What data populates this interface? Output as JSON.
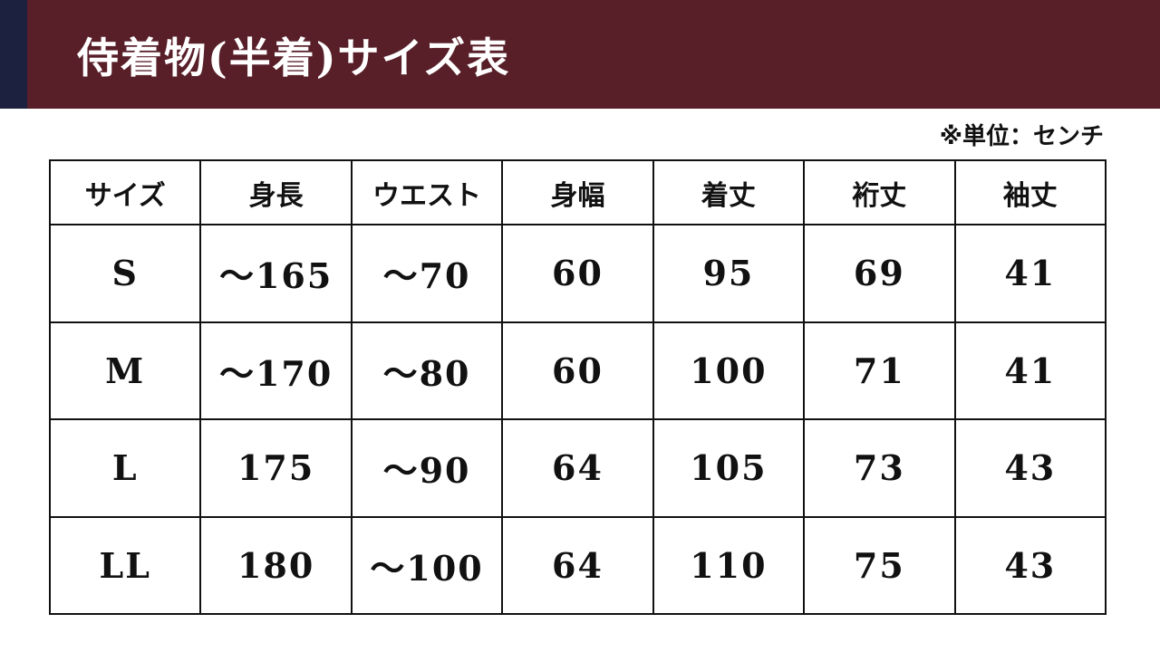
{
  "title": "侍着物(半着)サイズ表",
  "unit_note": "※単位：センチ",
  "colors": {
    "banner": "#581f29",
    "stripe": "#1d2140"
  },
  "table": {
    "headers": [
      "サイズ",
      "身長",
      "ウエスト",
      "身幅",
      "着丈",
      "裄丈",
      "袖丈"
    ],
    "rows": [
      [
        "S",
        "〜165",
        "〜70",
        "60",
        "95",
        "69",
        "41"
      ],
      [
        "M",
        "〜170",
        "〜80",
        "60",
        "100",
        "71",
        "41"
      ],
      [
        "L",
        "175",
        "〜90",
        "64",
        "105",
        "73",
        "43"
      ],
      [
        "LL",
        "180",
        "〜100",
        "64",
        "110",
        "75",
        "43"
      ]
    ]
  }
}
